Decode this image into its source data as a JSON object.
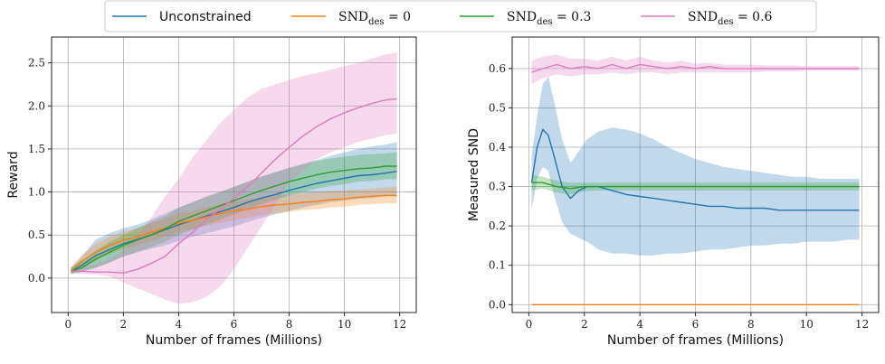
{
  "legend": {
    "items": [
      {
        "label": "Unconstrained",
        "math": false,
        "color": "#1f77b4"
      },
      {
        "label": "SND",
        "sub": "des",
        "rest": " = 0",
        "math": true,
        "color": "#ff7f0e"
      },
      {
        "label": "SND",
        "sub": "des",
        "rest": " = 0.3",
        "math": true,
        "color": "#2ca02c"
      },
      {
        "label": "SND",
        "sub": "des",
        "rest": " = 0.6",
        "math": true,
        "color": "#e377c2"
      }
    ]
  },
  "chart_data": [
    {
      "type": "line",
      "xlabel": "Number of frames (Millions)",
      "ylabel": "Reward",
      "xlim": [
        -0.6,
        12.6
      ],
      "ylim": [
        -0.4,
        2.8
      ],
      "xticks": [
        "0",
        "2",
        "4",
        "6",
        "8",
        "10",
        "12"
      ],
      "yticks": [
        "0.0",
        "0.5",
        "1.0",
        "1.5",
        "2.0",
        "2.5"
      ],
      "grid": true,
      "series": [
        {
          "name": "Unconstrained",
          "color": "#1f77b4",
          "x": [
            0.1,
            0.5,
            1,
            1.5,
            2,
            2.5,
            3,
            3.5,
            4,
            4.5,
            5,
            5.5,
            6,
            6.5,
            7,
            7.5,
            8,
            8.5,
            9,
            9.5,
            10,
            10.5,
            11,
            11.5,
            11.9
          ],
          "y": [
            0.08,
            0.15,
            0.26,
            0.33,
            0.4,
            0.45,
            0.5,
            0.56,
            0.62,
            0.67,
            0.72,
            0.77,
            0.82,
            0.88,
            0.93,
            0.97,
            1.02,
            1.06,
            1.1,
            1.13,
            1.16,
            1.19,
            1.2,
            1.22,
            1.24
          ],
          "lo": [
            0.05,
            0.08,
            0.12,
            0.18,
            0.25,
            0.3,
            0.34,
            0.38,
            0.43,
            0.48,
            0.52,
            0.56,
            0.6,
            0.65,
            0.7,
            0.74,
            0.78,
            0.82,
            0.85,
            0.88,
            0.9,
            0.92,
            0.93,
            0.95,
            0.96
          ],
          "hi": [
            0.12,
            0.25,
            0.45,
            0.52,
            0.58,
            0.62,
            0.68,
            0.75,
            0.82,
            0.88,
            0.95,
            1.0,
            1.06,
            1.12,
            1.18,
            1.23,
            1.28,
            1.33,
            1.37,
            1.42,
            1.46,
            1.5,
            1.53,
            1.55,
            1.58
          ]
        },
        {
          "name": "SND_des = 0",
          "color": "#ff7f0e",
          "x": [
            0.1,
            0.5,
            1,
            1.5,
            2,
            2.5,
            3,
            3.5,
            4,
            4.5,
            5,
            5.5,
            6,
            6.5,
            7,
            7.5,
            8,
            8.5,
            9,
            9.5,
            10,
            10.5,
            11,
            11.5,
            11.9
          ],
          "y": [
            0.08,
            0.2,
            0.3,
            0.38,
            0.44,
            0.48,
            0.53,
            0.58,
            0.64,
            0.67,
            0.71,
            0.75,
            0.78,
            0.8,
            0.83,
            0.85,
            0.86,
            0.88,
            0.89,
            0.91,
            0.92,
            0.94,
            0.95,
            0.96,
            0.96
          ],
          "lo": [
            0.05,
            0.12,
            0.2,
            0.28,
            0.34,
            0.38,
            0.43,
            0.48,
            0.53,
            0.57,
            0.61,
            0.64,
            0.67,
            0.7,
            0.73,
            0.75,
            0.77,
            0.79,
            0.8,
            0.82,
            0.83,
            0.85,
            0.86,
            0.87,
            0.87
          ],
          "hi": [
            0.12,
            0.27,
            0.4,
            0.48,
            0.54,
            0.58,
            0.64,
            0.68,
            0.75,
            0.78,
            0.82,
            0.86,
            0.89,
            0.91,
            0.94,
            0.96,
            0.97,
            0.99,
            1.0,
            1.01,
            1.02,
            1.03,
            1.04,
            1.05,
            1.06
          ]
        },
        {
          "name": "SND_des = 0.3",
          "color": "#2ca02c",
          "x": [
            0.1,
            0.5,
            1,
            1.5,
            2,
            2.5,
            3,
            3.5,
            4,
            4.5,
            5,
            5.5,
            6,
            6.5,
            7,
            7.5,
            8,
            8.5,
            9,
            9.5,
            10,
            10.5,
            11,
            11.5,
            11.9
          ],
          "y": [
            0.08,
            0.12,
            0.22,
            0.3,
            0.38,
            0.44,
            0.5,
            0.57,
            0.66,
            0.72,
            0.78,
            0.84,
            0.9,
            0.96,
            1.02,
            1.07,
            1.12,
            1.16,
            1.2,
            1.23,
            1.25,
            1.27,
            1.28,
            1.3,
            1.3
          ],
          "lo": [
            0.05,
            0.07,
            0.12,
            0.18,
            0.25,
            0.3,
            0.36,
            0.42,
            0.5,
            0.56,
            0.62,
            0.68,
            0.74,
            0.8,
            0.86,
            0.91,
            0.96,
            1.0,
            1.04,
            1.07,
            1.09,
            1.12,
            1.13,
            1.15,
            1.15
          ],
          "hi": [
            0.12,
            0.2,
            0.32,
            0.42,
            0.5,
            0.58,
            0.65,
            0.72,
            0.82,
            0.88,
            0.94,
            1.0,
            1.06,
            1.12,
            1.18,
            1.23,
            1.28,
            1.32,
            1.36,
            1.39,
            1.41,
            1.43,
            1.44,
            1.45,
            1.46
          ]
        },
        {
          "name": "SND_des = 0.6",
          "color": "#e377c2",
          "x": [
            0.1,
            0.5,
            1,
            1.5,
            2,
            2.5,
            3,
            3.5,
            4,
            4.5,
            5,
            5.5,
            6,
            6.5,
            7,
            7.5,
            8,
            8.5,
            9,
            9.5,
            10,
            10.5,
            11,
            11.5,
            11.9
          ],
          "y": [
            0.08,
            0.08,
            0.07,
            0.07,
            0.06,
            0.1,
            0.17,
            0.25,
            0.4,
            0.53,
            0.68,
            0.8,
            0.93,
            1.06,
            1.22,
            1.38,
            1.52,
            1.65,
            1.76,
            1.85,
            1.92,
            1.98,
            2.03,
            2.07,
            2.08
          ],
          "lo": [
            0.05,
            0.05,
            0.04,
            0.02,
            -0.05,
            -0.12,
            -0.18,
            -0.25,
            -0.3,
            -0.28,
            -0.22,
            -0.1,
            0.1,
            0.35,
            0.6,
            0.85,
            1.1,
            1.25,
            1.38,
            1.46,
            1.52,
            1.58,
            1.62,
            1.66,
            1.68
          ],
          "hi": [
            0.12,
            0.14,
            0.16,
            0.22,
            0.32,
            0.48,
            0.7,
            0.95,
            1.15,
            1.4,
            1.6,
            1.8,
            1.95,
            2.1,
            2.2,
            2.25,
            2.3,
            2.35,
            2.38,
            2.42,
            2.46,
            2.5,
            2.55,
            2.6,
            2.62
          ]
        }
      ]
    },
    {
      "type": "line",
      "xlabel": "Number of frames (Millions)",
      "ylabel": "Measured SND",
      "xlim": [
        -0.6,
        12.6
      ],
      "ylim": [
        -0.02,
        0.68
      ],
      "xticks": [
        "0",
        "2",
        "4",
        "6",
        "8",
        "10",
        "12"
      ],
      "yticks": [
        "0.0",
        "0.1",
        "0.2",
        "0.3",
        "0.4",
        "0.5",
        "0.6"
      ],
      "grid": true,
      "series": [
        {
          "name": "Unconstrained",
          "color": "#1f77b4",
          "x": [
            0.1,
            0.3,
            0.5,
            0.7,
            0.9,
            1.2,
            1.5,
            1.8,
            2.1,
            2.5,
            3,
            3.5,
            4,
            4.5,
            5,
            5.5,
            6,
            6.5,
            7,
            7.5,
            8,
            8.5,
            9,
            9.5,
            10,
            10.5,
            11,
            11.5,
            11.9
          ],
          "y": [
            0.31,
            0.4,
            0.445,
            0.43,
            0.38,
            0.3,
            0.27,
            0.29,
            0.3,
            0.3,
            0.29,
            0.28,
            0.275,
            0.27,
            0.265,
            0.26,
            0.255,
            0.25,
            0.25,
            0.245,
            0.245,
            0.245,
            0.24,
            0.24,
            0.24,
            0.24,
            0.24,
            0.24,
            0.24
          ],
          "lo": [
            0.24,
            0.32,
            0.35,
            0.34,
            0.28,
            0.21,
            0.18,
            0.17,
            0.16,
            0.14,
            0.13,
            0.13,
            0.125,
            0.125,
            0.13,
            0.13,
            0.135,
            0.14,
            0.14,
            0.145,
            0.15,
            0.15,
            0.155,
            0.155,
            0.16,
            0.16,
            0.16,
            0.165,
            0.165
          ],
          "hi": [
            0.38,
            0.48,
            0.56,
            0.58,
            0.52,
            0.42,
            0.36,
            0.39,
            0.42,
            0.44,
            0.45,
            0.445,
            0.435,
            0.42,
            0.4,
            0.385,
            0.37,
            0.36,
            0.35,
            0.345,
            0.34,
            0.335,
            0.33,
            0.325,
            0.325,
            0.32,
            0.32,
            0.32,
            0.32
          ]
        },
        {
          "name": "SND_des = 0",
          "color": "#ff7f0e",
          "x": [
            0.1,
            11.9
          ],
          "y": [
            0.0,
            0.0
          ],
          "lo": [
            0.0,
            0.0
          ],
          "hi": [
            0.0,
            0.0
          ]
        },
        {
          "name": "SND_des = 0.3",
          "color": "#2ca02c",
          "x": [
            0.1,
            0.5,
            1,
            1.5,
            2,
            2.5,
            3,
            3.5,
            4,
            4.5,
            5,
            5.5,
            6,
            6.5,
            7,
            7.5,
            8,
            8.5,
            9,
            9.5,
            10,
            10.5,
            11,
            11.5,
            11.9
          ],
          "y": [
            0.31,
            0.31,
            0.3,
            0.295,
            0.3,
            0.3,
            0.3,
            0.3,
            0.3,
            0.3,
            0.3,
            0.3,
            0.3,
            0.3,
            0.3,
            0.3,
            0.3,
            0.3,
            0.3,
            0.3,
            0.3,
            0.3,
            0.3,
            0.3,
            0.3
          ],
          "lo": [
            0.29,
            0.295,
            0.285,
            0.28,
            0.288,
            0.29,
            0.29,
            0.29,
            0.29,
            0.29,
            0.29,
            0.29,
            0.29,
            0.29,
            0.29,
            0.29,
            0.29,
            0.29,
            0.29,
            0.29,
            0.29,
            0.29,
            0.29,
            0.29,
            0.29
          ],
          "hi": [
            0.33,
            0.325,
            0.315,
            0.31,
            0.31,
            0.31,
            0.31,
            0.31,
            0.31,
            0.31,
            0.31,
            0.31,
            0.31,
            0.31,
            0.31,
            0.31,
            0.31,
            0.31,
            0.31,
            0.31,
            0.31,
            0.31,
            0.31,
            0.31,
            0.31
          ]
        },
        {
          "name": "SND_des = 0.6",
          "color": "#e377c2",
          "x": [
            0.1,
            0.5,
            1,
            1.5,
            2,
            2.5,
            3,
            3.5,
            4,
            4.5,
            5,
            5.5,
            6,
            6.5,
            7,
            7.5,
            8,
            8.5,
            9,
            9.5,
            10,
            10.5,
            11,
            11.5,
            11.9
          ],
          "y": [
            0.59,
            0.6,
            0.61,
            0.6,
            0.605,
            0.6,
            0.61,
            0.6,
            0.61,
            0.605,
            0.6,
            0.605,
            0.6,
            0.605,
            0.6,
            0.6,
            0.6,
            0.6,
            0.6,
            0.6,
            0.6,
            0.6,
            0.6,
            0.6,
            0.6
          ],
          "lo": [
            0.56,
            0.575,
            0.585,
            0.58,
            0.585,
            0.585,
            0.59,
            0.585,
            0.59,
            0.59,
            0.585,
            0.59,
            0.59,
            0.59,
            0.59,
            0.59,
            0.59,
            0.592,
            0.592,
            0.592,
            0.595,
            0.595,
            0.595,
            0.595,
            0.595
          ],
          "hi": [
            0.62,
            0.63,
            0.635,
            0.625,
            0.625,
            0.62,
            0.63,
            0.62,
            0.63,
            0.62,
            0.615,
            0.62,
            0.612,
            0.615,
            0.61,
            0.61,
            0.61,
            0.608,
            0.608,
            0.608,
            0.606,
            0.606,
            0.606,
            0.606,
            0.606
          ]
        }
      ]
    }
  ]
}
